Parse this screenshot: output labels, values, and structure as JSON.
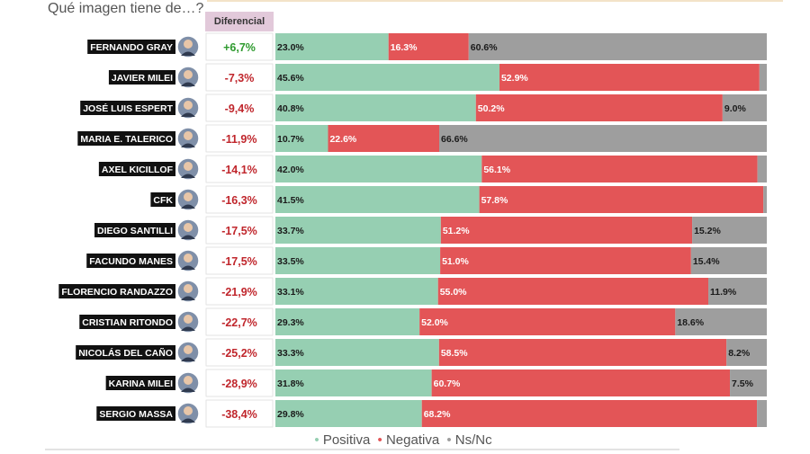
{
  "title": "Qué imagen tiene de…?",
  "diff_header": "Diferencial",
  "colors": {
    "positiva": "#96cfb2",
    "negativa": "#e35557",
    "nsnc": "#9e9e9e",
    "diff_pos": "#2e9a2e",
    "diff_neg": "#c0262c"
  },
  "legend": [
    {
      "label": "Positiva",
      "color": "#96cfb2"
    },
    {
      "label": "Negativa",
      "color": "#e35557"
    },
    {
      "label": "Ns/Nc",
      "color": "#9e9e9e"
    }
  ],
  "chart_data": {
    "type": "bar",
    "orientation": "horizontal",
    "stacked": true,
    "title": "Qué imagen tiene de…?",
    "categories": [
      "FERNANDO GRAY",
      "JAVIER MILEI",
      "JOSÉ LUIS ESPERT",
      "MARIA E. TALERICO",
      "AXEL KICILLOF",
      "CFK",
      "DIEGO SANTILLI",
      "FACUNDO MANES",
      "FLORENCIO RANDAZZO",
      "CRISTIAN RITONDO",
      "NICOLÁS DEL CAÑO",
      "KARINA MILEI",
      "SERGIO MASSA"
    ],
    "diferencial": [
      "+6,7%",
      "-7,3%",
      "-9,4%",
      "-11,9%",
      "-14,1%",
      "-16,3%",
      "-17,5%",
      "-17,5%",
      "-21,9%",
      "-22,7%",
      "-25,2%",
      "-28,9%",
      "-38,4%"
    ],
    "series": [
      {
        "name": "Positiva",
        "values": [
          23.0,
          45.6,
          40.8,
          10.7,
          42.0,
          41.5,
          33.7,
          33.5,
          33.1,
          29.3,
          33.3,
          31.8,
          29.8
        ],
        "labels": [
          "23.0%",
          "45.6%",
          "40.8%",
          "10.7%",
          "42.0%",
          "41.5%",
          "33.7%",
          "33.5%",
          "33.1%",
          "29.3%",
          "33.3%",
          "31.8%",
          "29.8%"
        ]
      },
      {
        "name": "Negativa",
        "values": [
          16.3,
          52.9,
          50.2,
          22.6,
          56.1,
          57.8,
          51.2,
          51.0,
          55.0,
          52.0,
          58.5,
          60.7,
          68.2
        ],
        "labels": [
          "16.3%",
          "52.9%",
          "50.2%",
          "22.6%",
          "56.1%",
          "57.8%",
          "51.2%",
          "51.0%",
          "55.0%",
          "52.0%",
          "58.5%",
          "60.7%",
          "68.2%"
        ]
      },
      {
        "name": "Ns/Nc",
        "values": [
          60.6,
          1.5,
          9.0,
          66.6,
          1.9,
          0.7,
          15.2,
          15.4,
          11.9,
          18.6,
          8.2,
          7.5,
          2.0
        ],
        "labels": [
          "60.6%",
          "",
          "9.0%",
          "66.6%",
          "",
          "",
          "15.2%",
          "15.4%",
          "11.9%",
          "18.6%",
          "8.2%",
          "7.5%",
          ""
        ]
      }
    ],
    "xlim": [
      0,
      100
    ]
  }
}
